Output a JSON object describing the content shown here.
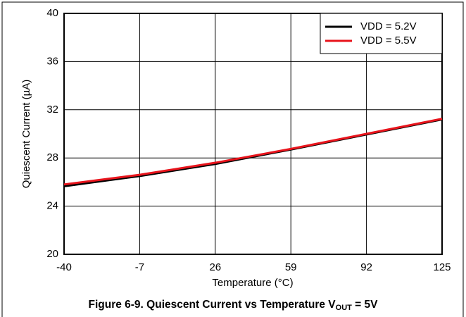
{
  "chart_data": {
    "type": "line",
    "xlabel": "Temperature (°C)",
    "ylabel": "Quiescent Current (µA)",
    "caption": {
      "text": "Figure 6-9. Quiescent Current vs Temperature V",
      "subscript": "OUT",
      "suffix": " = 5V"
    },
    "x": [
      -40,
      -7,
      26,
      59,
      92,
      125
    ],
    "series": [
      {
        "name": "VDD = 5.2V",
        "color": "#000000",
        "values": [
          25.65,
          26.5,
          27.5,
          28.7,
          29.95,
          31.2
        ]
      },
      {
        "name": "VDD = 5.5V",
        "color": "#e8141c",
        "values": [
          25.8,
          26.6,
          27.6,
          28.75,
          30.0,
          31.25
        ]
      }
    ],
    "xlim": [
      -40,
      125
    ],
    "xticks": [
      -40,
      -7,
      26,
      59,
      92,
      125
    ],
    "ylim": [
      20,
      40
    ],
    "yticks": [
      20,
      24,
      28,
      32,
      36,
      40
    ],
    "grid": true,
    "legend": "upper right"
  }
}
